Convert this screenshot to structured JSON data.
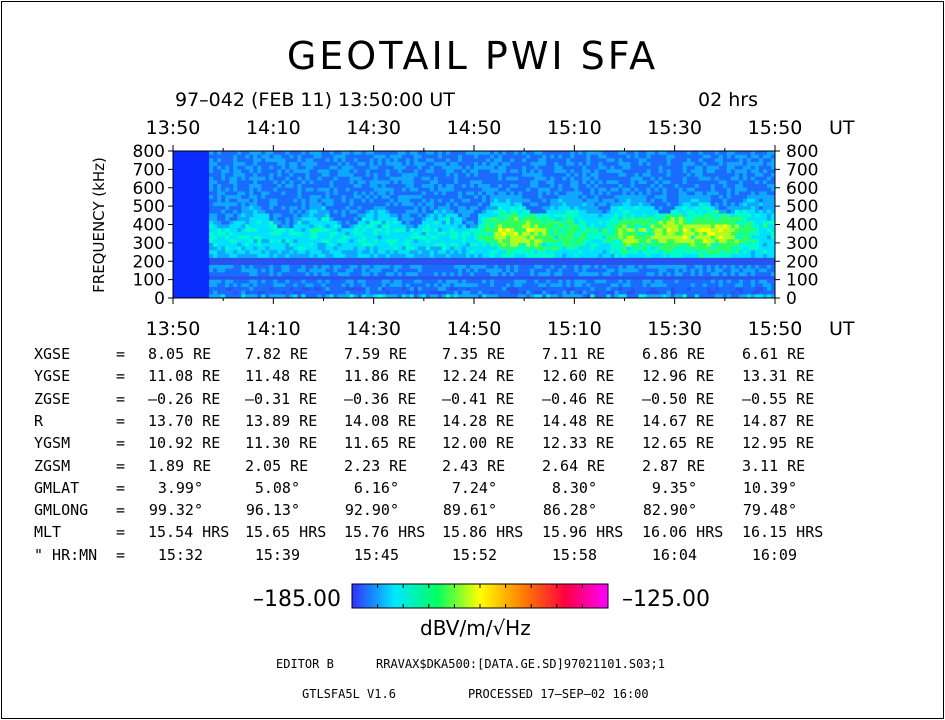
{
  "header": {
    "title": "GEOTAIL  PWI  SFA",
    "date_line": "97–042  (FEB 11)  13:50:00  UT",
    "duration": "02  hrs"
  },
  "chart_data": {
    "type": "heatmap",
    "title": "GEOTAIL  PWI  SFA",
    "x_ticks": [
      "13:50",
      "14:10",
      "14:30",
      "14:50",
      "15:10",
      "15:30",
      "15:50"
    ],
    "x_unit": "UT",
    "ylabel": "FREQUENCY (kHz)",
    "y_ticks": [
      "800",
      "700",
      "600",
      "500",
      "400",
      "300",
      "200",
      "100",
      "0"
    ],
    "ylim": [
      0,
      800
    ],
    "colorbar": {
      "min_label": "–185.00",
      "max_label": "–125.00",
      "unit": "dBV/m/√Hz",
      "colors": [
        "#3030ff",
        "#00e8ff",
        "#00ff60",
        "#ffff00",
        "#ff8000",
        "#ff0040",
        "#ff00ff"
      ]
    }
  },
  "ephemeris": {
    "rows": [
      {
        "label": "XGSE",
        "values": [
          "8.05 RE",
          "7.82 RE",
          "7.59 RE",
          "7.35 RE",
          "7.11 RE",
          "6.86 RE",
          "6.61 RE"
        ]
      },
      {
        "label": "YGSE",
        "values": [
          "11.08 RE",
          "11.48 RE",
          "11.86 RE",
          "12.24 RE",
          "12.60 RE",
          "12.96 RE",
          "13.31 RE"
        ]
      },
      {
        "label": "ZGSE",
        "values": [
          "–0.26 RE",
          "–0.31 RE",
          "–0.36 RE",
          "–0.41 RE",
          "–0.46 RE",
          "–0.50 RE",
          "–0.55 RE"
        ]
      },
      {
        "label": "R",
        "values": [
          "13.70 RE",
          "13.89 RE",
          "14.08 RE",
          "14.28 RE",
          "14.48 RE",
          "14.67 RE",
          "14.87 RE"
        ]
      },
      {
        "label": "YGSM",
        "values": [
          "10.92 RE",
          "11.30 RE",
          "11.65 RE",
          "12.00 RE",
          "12.33 RE",
          "12.65 RE",
          "12.95 RE"
        ]
      },
      {
        "label": "ZGSM",
        "values": [
          "1.89 RE",
          "2.05 RE",
          "2.23 RE",
          "2.43 RE",
          "2.64 RE",
          "2.87 RE",
          "3.11 RE"
        ]
      },
      {
        "label": "GMLAT",
        "values": [
          "3.99°",
          "5.08°",
          "6.16°",
          "7.24°",
          "8.30°",
          "9.35°",
          "10.39°"
        ]
      },
      {
        "label": "GMLONG",
        "values": [
          "99.32°",
          "96.13°",
          "92.90°",
          "89.61°",
          "86.28°",
          "82.90°",
          "79.48°"
        ]
      },
      {
        "label": "MLT",
        "values": [
          "15.54 HRS",
          "15.65 HRS",
          "15.76 HRS",
          "15.86 HRS",
          "15.96 HRS",
          "16.06 HRS",
          "16.15 HRS"
        ]
      },
      {
        "label": "\" HR:MN",
        "values": [
          "15:32",
          "15:39",
          "15:45",
          "15:52",
          "15:58",
          "16:04",
          "16:09"
        ]
      }
    ]
  },
  "footer": {
    "editor": "EDITOR  B",
    "file": "RRAVAX$DKA500:[DATA.GE.SD]97021101.S03;1",
    "version": "GTLSFA5L  V1.6",
    "processed": "PROCESSED  17–SEP–02   16:00"
  }
}
